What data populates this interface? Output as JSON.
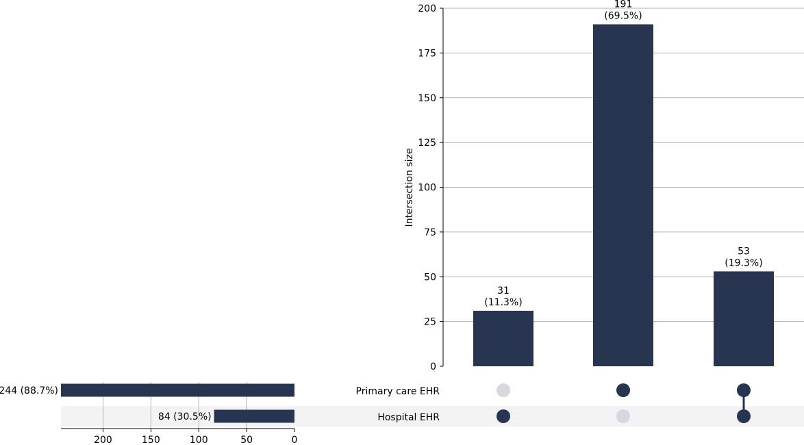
{
  "colors": {
    "bar": "#273550",
    "inactive_dot": "#d5d8de",
    "stripe": "#f3f3f5",
    "grid": "#b0b0b0",
    "axis": "#000000"
  },
  "chart_data": [
    {
      "type": "bar",
      "role": "intersection-size",
      "categories": [
        "Hospital EHR only",
        "Primary care EHR only",
        "Primary care EHR & Hospital EHR"
      ],
      "values": [
        31,
        191,
        53
      ],
      "data_labels": [
        {
          "count": "31",
          "pct": "(11.3%)"
        },
        {
          "count": "191",
          "pct": "(69.5%)"
        },
        {
          "count": "53",
          "pct": "(19.3%)"
        }
      ],
      "ylabel": "Intersection size",
      "ylim": [
        0,
        200
      ],
      "yticks": [
        0,
        25,
        50,
        75,
        100,
        125,
        150,
        175,
        200
      ],
      "grid": true
    },
    {
      "type": "bar",
      "role": "set-size",
      "orientation": "horizontal",
      "categories": [
        "Primary care EHR",
        "Hospital EHR"
      ],
      "values": [
        244,
        84
      ],
      "data_labels": [
        "244 (88.7%)",
        "84 (30.5%)"
      ],
      "xlim": [
        244,
        0
      ],
      "xticks": [
        200,
        150,
        100,
        50,
        0
      ],
      "grid": true
    }
  ],
  "matrix": {
    "sets": [
      "Primary care EHR",
      "Hospital EHR"
    ],
    "membership": [
      [
        false,
        true
      ],
      [
        true,
        false
      ],
      [
        true,
        true
      ]
    ]
  }
}
